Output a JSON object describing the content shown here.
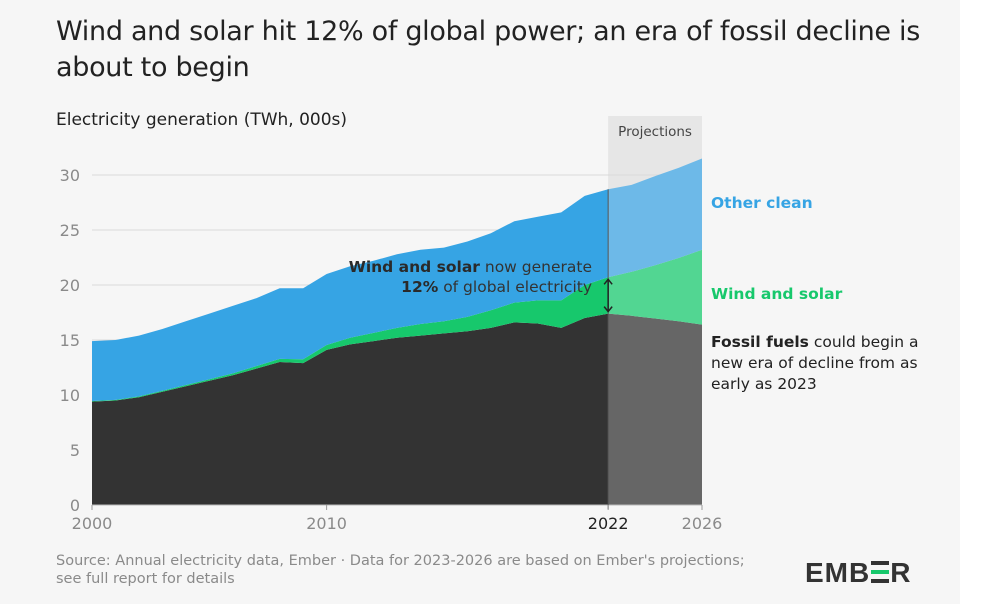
{
  "chart_data": {
    "type": "area",
    "title": "Wind and solar hit 12% of global power; an era of fossil decline is about to begin",
    "ylabel": "Electricity generation (TWh, 000s)",
    "xlabel": "",
    "ylim": [
      0,
      30
    ],
    "yticks": [
      0,
      5,
      10,
      15,
      20,
      25,
      30
    ],
    "xticks": [
      2000,
      2010,
      2022,
      2026
    ],
    "projection_start": 2022,
    "projection_end": 2026,
    "projection_label": "Projections",
    "grid": true,
    "stacked": true,
    "x": [
      2000,
      2001,
      2002,
      2003,
      2004,
      2005,
      2006,
      2007,
      2008,
      2009,
      2010,
      2011,
      2012,
      2013,
      2014,
      2015,
      2016,
      2017,
      2018,
      2019,
      2020,
      2021,
      2022,
      2023,
      2024,
      2025,
      2026
    ],
    "series": [
      {
        "name": "Fossil fuels",
        "color": "#333333",
        "projection_color": "#666666",
        "values": [
          9.4,
          9.5,
          9.8,
          10.3,
          10.8,
          11.3,
          11.8,
          12.4,
          13.0,
          12.9,
          14.1,
          14.6,
          14.9,
          15.2,
          15.4,
          15.6,
          15.8,
          16.1,
          16.6,
          16.5,
          16.1,
          17.0,
          17.4,
          17.2,
          16.95,
          16.7,
          16.4
        ]
      },
      {
        "name": "Wind and solar",
        "color": "#17c86c",
        "projection_color": "#52d692",
        "values": [
          0.05,
          0.06,
          0.07,
          0.09,
          0.11,
          0.13,
          0.17,
          0.22,
          0.28,
          0.35,
          0.45,
          0.6,
          0.75,
          0.9,
          1.05,
          1.1,
          1.3,
          1.6,
          1.8,
          2.1,
          2.5,
          3.0,
          3.3,
          4.0,
          4.85,
          5.75,
          6.8
        ]
      },
      {
        "name": "Other clean",
        "color": "#36a4e4",
        "projection_color": "#6db9e8",
        "values": [
          5.45,
          5.44,
          5.53,
          5.61,
          5.79,
          5.97,
          6.13,
          6.18,
          6.42,
          6.45,
          6.45,
          6.5,
          6.55,
          6.7,
          6.75,
          6.7,
          6.85,
          7.0,
          7.4,
          7.6,
          8.0,
          8.1,
          8.0,
          7.9,
          8.1,
          8.2,
          8.3
        ]
      }
    ],
    "annotations": [
      {
        "text_bold": "Wind and solar",
        "text": " now generate",
        "text2_bold": "12%",
        "text2": " of global electricity",
        "year": 2022
      }
    ],
    "series_labels": [
      {
        "name": "Other clean",
        "color": "#36a4e4"
      },
      {
        "name": "Wind and solar",
        "color": "#17c86c"
      }
    ],
    "fossil_note": {
      "bold": "Fossil fuels",
      "rest": " could begin a new era of decline from as early as 2023"
    }
  },
  "footer": {
    "source": "Source: Annual electricity data, Ember · Data for 2023-2026 are based on Ember's projections; see full report for details",
    "logo": "EMBER"
  }
}
